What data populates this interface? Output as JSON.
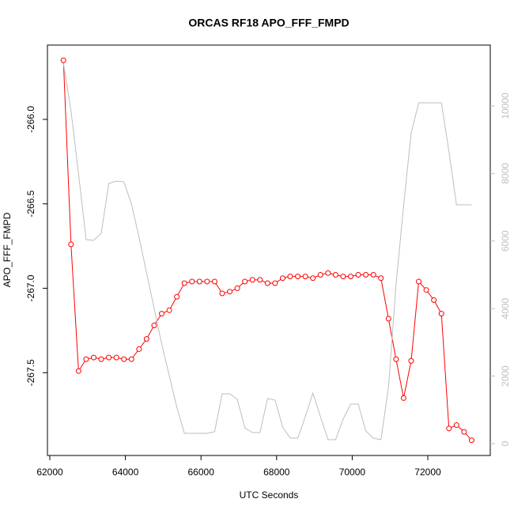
{
  "chart_data": {
    "type": "line",
    "title": "ORCAS RF18 APO_FFF_FMPD",
    "xlabel": "UTC Seconds",
    "ylabel": "APO_FFF_FMPD",
    "x": [
      62360,
      62560,
      62760,
      62960,
      63160,
      63360,
      63560,
      63760,
      63960,
      64160,
      64360,
      64560,
      64760,
      64960,
      65160,
      65360,
      65560,
      65760,
      65960,
      66160,
      66360,
      66560,
      66760,
      66960,
      67160,
      67360,
      67560,
      67760,
      67960,
      68160,
      68360,
      68560,
      68760,
      68960,
      69160,
      69360,
      69560,
      69760,
      69960,
      70160,
      70360,
      70560,
      70760,
      70960,
      71160,
      71360,
      71560,
      71760,
      71960,
      72160,
      72360,
      72560,
      72760,
      72960,
      73160
    ],
    "series": [
      {
        "color": "#ff0000",
        "marker": "circle",
        "values": [
          -265.65,
          -266.74,
          -267.49,
          -267.42,
          -267.41,
          -267.42,
          -267.41,
          -267.41,
          -267.42,
          -267.42,
          -267.36,
          -267.3,
          -267.22,
          -267.15,
          -267.13,
          -267.05,
          -266.97,
          -266.96,
          -266.96,
          -266.96,
          -266.96,
          -267.03,
          -267.02,
          -267.0,
          -266.96,
          -266.95,
          -266.95,
          -266.97,
          -266.97,
          -266.94,
          -266.93,
          -266.93,
          -266.93,
          -266.94,
          -266.92,
          -266.91,
          -266.92,
          -266.93,
          -266.93,
          -266.92,
          -266.92,
          -266.92,
          -266.94,
          -267.18,
          -267.42,
          -267.65,
          -267.43,
          -266.96,
          -267.01,
          -267.07,
          -267.15,
          -267.83,
          -267.81,
          -267.85,
          -267.9
        ]
      },
      {
        "color": "#bebebe",
        "axis": "y2",
        "values": [
          11265,
          9860,
          7986,
          6042,
          6019,
          6230,
          7705,
          7775,
          7752,
          7096,
          6112,
          5058,
          4005,
          2951,
          2014,
          1077,
          304,
          304,
          304,
          304,
          351,
          1475,
          1475,
          1311,
          468,
          328,
          328,
          1335,
          1288,
          492,
          164,
          164,
          796,
          1499,
          796,
          117,
          117,
          726,
          1171,
          1171,
          375,
          164,
          117,
          1663,
          4707,
          7049,
          9204,
          10094,
          10094,
          10094,
          10094,
          8642,
          7073,
          7073,
          7073
        ]
      }
    ],
    "xlim": [
      61937,
      73653
    ],
    "xticks": [
      62000,
      64000,
      66000,
      68000,
      70000,
      72000
    ],
    "ylim": [
      -267.99,
      -265.56
    ],
    "yticks": [
      {
        "value": -266,
        "label": "-266.0"
      },
      -266.5,
      {
        "value": -267,
        "label": "-267.0"
      },
      -267.5
    ],
    "y2lim": [
      -351,
      11803
    ],
    "y2ticks": [
      0,
      2000,
      4000,
      6000,
      8000,
      10000
    ]
  }
}
